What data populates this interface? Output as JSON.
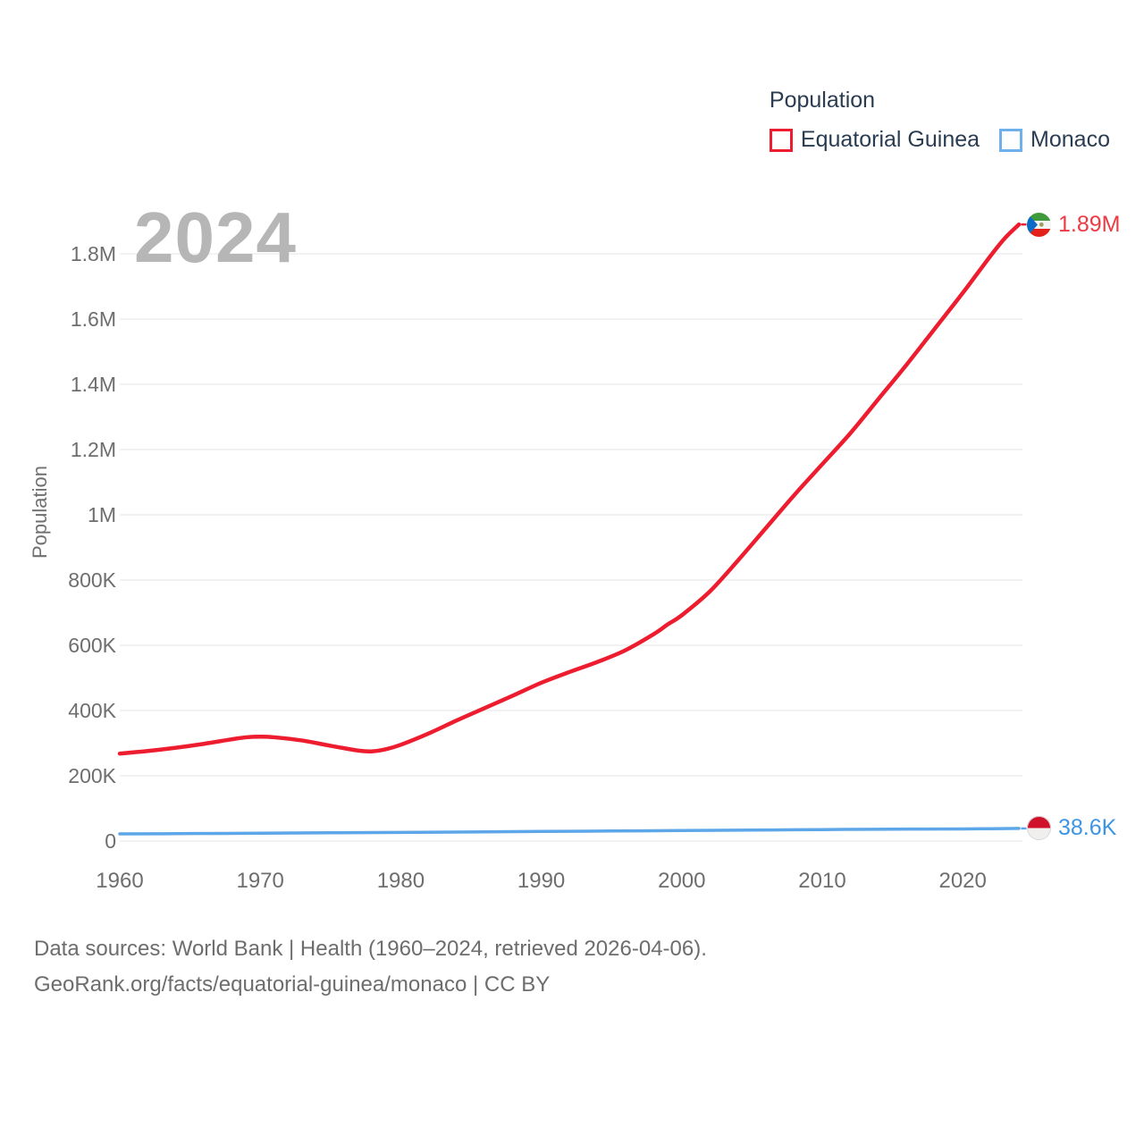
{
  "watermark": {
    "text": "2024"
  },
  "legend": {
    "title": "Population",
    "items": [
      {
        "label": "Equatorial Guinea",
        "color": "#ed1c2e"
      },
      {
        "label": "Monaco",
        "color": "#6fb0ec"
      }
    ]
  },
  "icons": {
    "equatorial_guinea_flag": "circular flag of Equatorial Guinea",
    "monaco_flag": "circular flag of Monaco"
  },
  "chart_data": {
    "type": "line",
    "title": "Population",
    "xlabel": "",
    "ylabel": "Population",
    "xlim": [
      1960,
      2024
    ],
    "ylim": [
      0,
      1900000
    ],
    "grid": "horizontal",
    "legend_position": "top-right",
    "x_ticks": [
      {
        "value": 1960,
        "label": "1960"
      },
      {
        "value": 1970,
        "label": "1970"
      },
      {
        "value": 1980,
        "label": "1980"
      },
      {
        "value": 1990,
        "label": "1990"
      },
      {
        "value": 2000,
        "label": "2000"
      },
      {
        "value": 2010,
        "label": "2010"
      },
      {
        "value": 2020,
        "label": "2020"
      }
    ],
    "y_ticks": [
      {
        "value": 0,
        "label": "0"
      },
      {
        "value": 200000,
        "label": "200K"
      },
      {
        "value": 400000,
        "label": "400K"
      },
      {
        "value": 600000,
        "label": "600K"
      },
      {
        "value": 800000,
        "label": "800K"
      },
      {
        "value": 1000000,
        "label": "1M"
      },
      {
        "value": 1200000,
        "label": "1.2M"
      },
      {
        "value": 1400000,
        "label": "1.4M"
      },
      {
        "value": 1600000,
        "label": "1.6M"
      },
      {
        "value": 1800000,
        "label": "1.8M"
      }
    ],
    "series": [
      {
        "name": "Equatorial Guinea",
        "color": "#ed1c2e",
        "label_color": "#ee3b43",
        "end_label": "1.89M",
        "end_value": 1890000,
        "points": [
          [
            1960,
            268000
          ],
          [
            1962,
            276000
          ],
          [
            1964,
            286000
          ],
          [
            1966,
            298000
          ],
          [
            1968,
            312000
          ],
          [
            1969,
            318000
          ],
          [
            1970,
            320000
          ],
          [
            1971,
            318000
          ],
          [
            1973,
            308000
          ],
          [
            1975,
            292000
          ],
          [
            1977,
            277000
          ],
          [
            1978,
            275000
          ],
          [
            1979,
            282000
          ],
          [
            1980,
            295000
          ],
          [
            1982,
            330000
          ],
          [
            1984,
            370000
          ],
          [
            1986,
            408000
          ],
          [
            1988,
            446000
          ],
          [
            1990,
            485000
          ],
          [
            1992,
            518000
          ],
          [
            1994,
            549000
          ],
          [
            1996,
            585000
          ],
          [
            1998,
            634000
          ],
          [
            1999,
            664000
          ],
          [
            2000,
            692000
          ],
          [
            2002,
            765000
          ],
          [
            2004,
            860000
          ],
          [
            2006,
            960000
          ],
          [
            2008,
            1060000
          ],
          [
            2010,
            1155000
          ],
          [
            2012,
            1250000
          ],
          [
            2014,
            1355000
          ],
          [
            2016,
            1460000
          ],
          [
            2018,
            1570000
          ],
          [
            2020,
            1680000
          ],
          [
            2022,
            1795000
          ],
          [
            2023,
            1848000
          ],
          [
            2024,
            1890000
          ]
        ]
      },
      {
        "name": "Monaco",
        "color": "#5da7e8",
        "label_color": "#3d95e3",
        "end_label": "38.6K",
        "end_value": 38600,
        "points": [
          [
            1960,
            21800
          ],
          [
            1965,
            22800
          ],
          [
            1970,
            24000
          ],
          [
            1975,
            25200
          ],
          [
            1980,
            26400
          ],
          [
            1985,
            27800
          ],
          [
            1990,
            29300
          ],
          [
            1995,
            30700
          ],
          [
            2000,
            32100
          ],
          [
            2005,
            33600
          ],
          [
            2010,
            35000
          ],
          [
            2015,
            36400
          ],
          [
            2020,
            37100
          ],
          [
            2022,
            37800
          ],
          [
            2024,
            38600
          ]
        ]
      }
    ]
  },
  "footer": {
    "line1": "Data sources: World Bank | Health (1960–2024, retrieved 2026-04-06).",
    "line2": "GeoRank.org/facts/equatorial-guinea/monaco | CC BY"
  }
}
